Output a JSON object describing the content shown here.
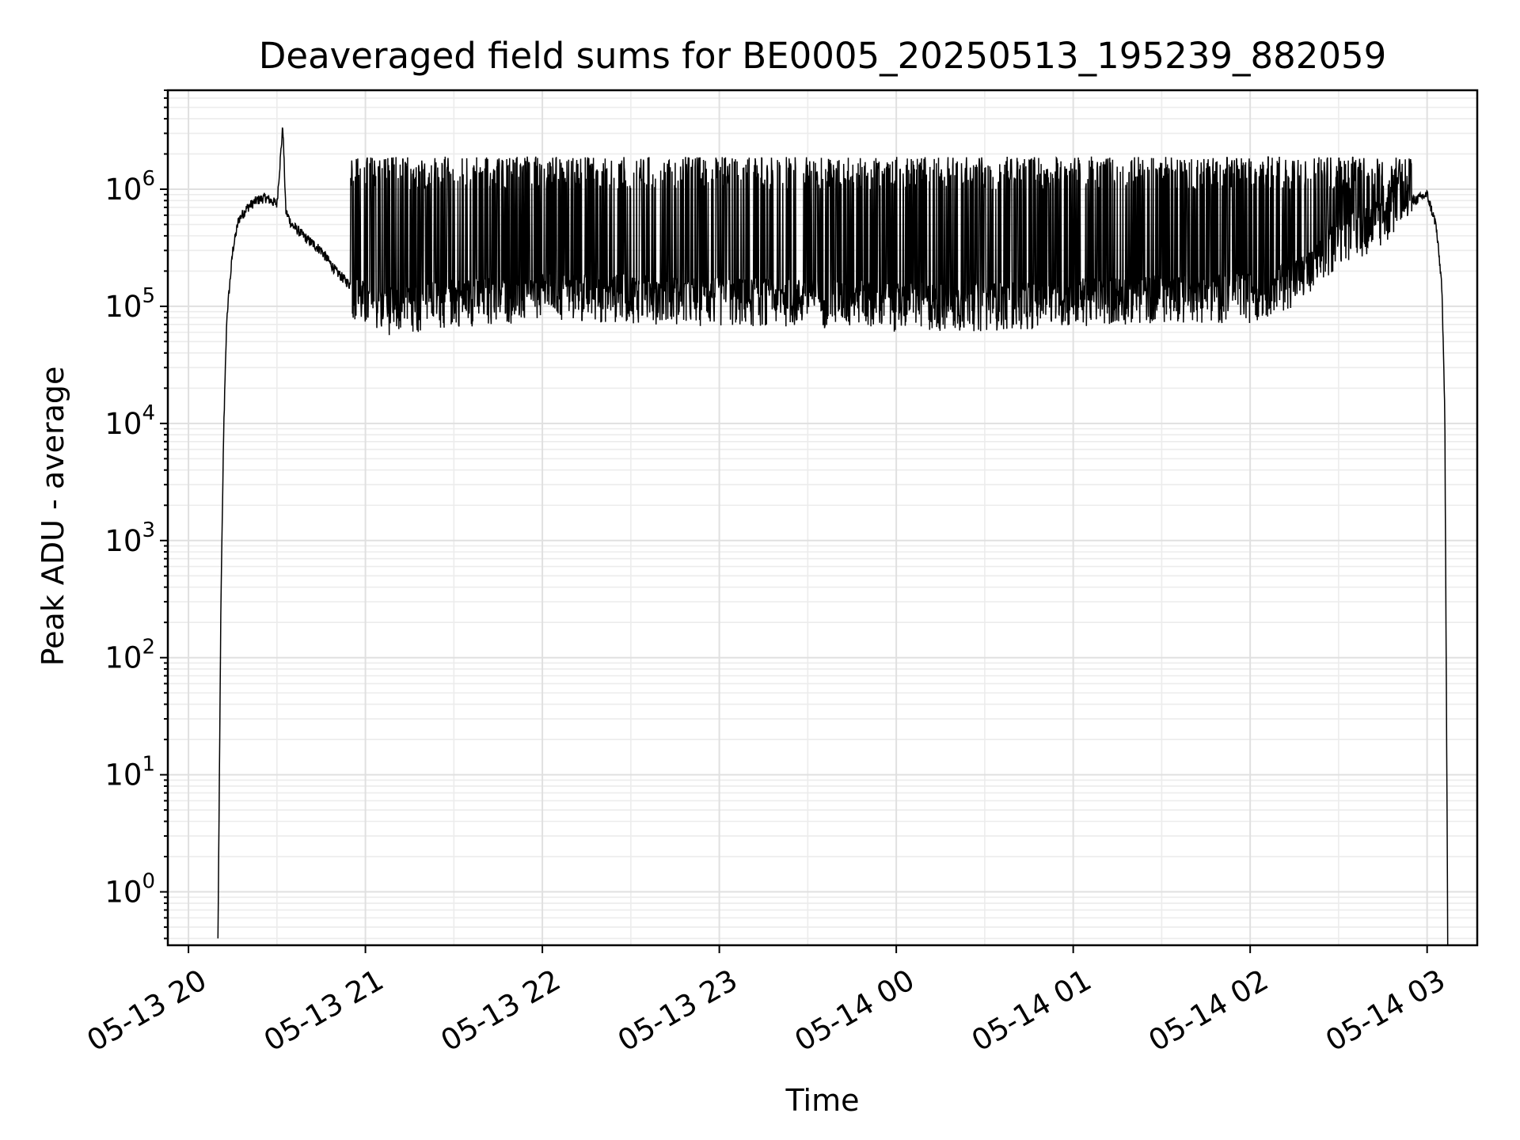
{
  "chart_data": {
    "type": "line",
    "title": "Deaveraged field sums for BE0005_20250513_195239_882059",
    "xlabel": "Time",
    "ylabel": "Peak ADU - average",
    "x_range": [
      "2025-05-13 19:53",
      "2025-05-14 03:17"
    ],
    "y_scale": "log",
    "ylim": [
      0.35,
      7000000
    ],
    "grid": "major and minor, light gray",
    "line_color": "#000000",
    "x_ticks": [
      {
        "value": "2025-05-13 20:00",
        "label": "05-13 20"
      },
      {
        "value": "2025-05-13 21:00",
        "label": "05-13 21"
      },
      {
        "value": "2025-05-13 22:00",
        "label": "05-13 22"
      },
      {
        "value": "2025-05-13 23:00",
        "label": "05-13 23"
      },
      {
        "value": "2025-05-14 00:00",
        "label": "05-14 00"
      },
      {
        "value": "2025-05-14 01:00",
        "label": "05-14 01"
      },
      {
        "value": "2025-05-14 02:00",
        "label": "05-14 02"
      },
      {
        "value": "2025-05-14 03:00",
        "label": "05-14 03"
      }
    ],
    "y_ticks": [
      {
        "value": 1,
        "base": "10",
        "exp": "0"
      },
      {
        "value": 10,
        "base": "10",
        "exp": "1"
      },
      {
        "value": 100,
        "base": "10",
        "exp": "2"
      },
      {
        "value": 1000,
        "base": "10",
        "exp": "3"
      },
      {
        "value": 10000,
        "base": "10",
        "exp": "4"
      },
      {
        "value": 100000,
        "base": "10",
        "exp": "5"
      },
      {
        "value": 1000000,
        "base": "10",
        "exp": "6"
      }
    ],
    "series": [
      {
        "values_description": "noisy time series",
        "x": [
          "2025-05-13 20:10",
          "2025-05-13 20:11",
          "2025-05-13 20:12",
          "2025-05-13 20:13",
          "2025-05-13 20:15",
          "2025-05-13 20:17",
          "2025-05-13 20:20",
          "2025-05-13 20:23",
          "2025-05-13 20:26",
          "2025-05-13 20:30",
          "2025-05-13 20:32",
          "2025-05-13 20:33",
          "2025-05-13 20:35",
          "2025-05-13 20:40",
          "2025-05-13 20:45",
          "2025-05-13 20:50",
          "2025-05-13 20:55",
          "2025-05-13 21:00",
          "2025-05-13 21:10",
          "2025-05-13 21:20",
          "2025-05-13 21:30",
          "2025-05-13 22:00",
          "2025-05-13 22:30",
          "2025-05-13 23:00",
          "2025-05-13 23:30",
          "2025-05-14 00:00",
          "2025-05-14 00:30",
          "2025-05-14 01:00",
          "2025-05-14 01:30",
          "2025-05-14 02:00",
          "2025-05-14 02:20",
          "2025-05-14 02:30",
          "2025-05-14 02:40",
          "2025-05-14 02:50",
          "2025-05-14 03:00",
          "2025-05-14 03:03",
          "2025-05-14 03:05",
          "2025-05-14 03:06",
          "2025-05-14 03:07"
        ],
        "values": [
          0.4,
          300,
          10000,
          80000,
          300000,
          550000,
          700000,
          800000,
          850000,
          750000,
          3500000,
          650000,
          500000,
          380000,
          300000,
          200000,
          150000,
          110000,
          100000,
          110000,
          120000,
          130000,
          130000,
          120000,
          120000,
          110000,
          110000,
          120000,
          130000,
          130000,
          200000,
          400000,
          500000,
          700000,
          900000,
          500000,
          150000,
          12000,
          0.4
        ]
      }
    ]
  }
}
